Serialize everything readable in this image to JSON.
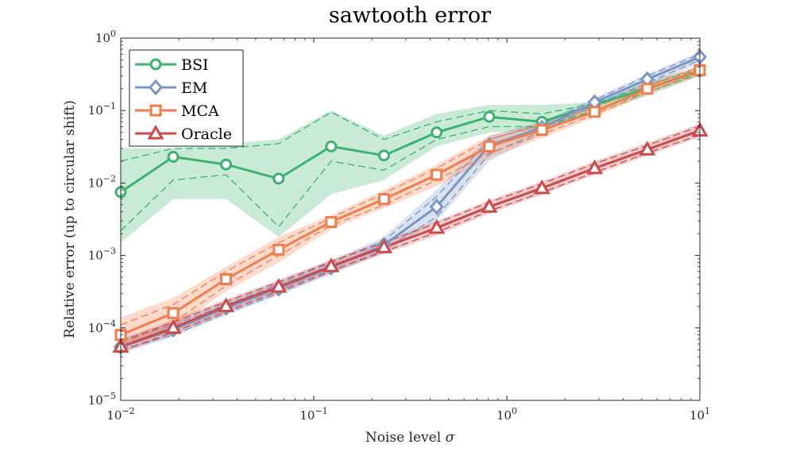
{
  "chart_data": {
    "type": "line",
    "title": "sawtooth error",
    "xlabel": "Noise level σ",
    "ylabel": "Relative error (up to circular shift)",
    "xscale": "log",
    "yscale": "log",
    "xlim": [
      0.01,
      10
    ],
    "ylim": [
      1e-05,
      1
    ],
    "x_ticks": [
      {
        "value": 0.01,
        "base": "10",
        "exp": "−2"
      },
      {
        "value": 0.1,
        "base": "10",
        "exp": "−1"
      },
      {
        "value": 1,
        "base": "10",
        "exp": "0"
      },
      {
        "value": 10,
        "base": "10",
        "exp": "1"
      }
    ],
    "y_ticks": [
      {
        "value": 1e-05,
        "base": "10",
        "exp": "−5"
      },
      {
        "value": 0.0001,
        "base": "10",
        "exp": "−4"
      },
      {
        "value": 0.001,
        "base": "10",
        "exp": "−3"
      },
      {
        "value": 0.01,
        "base": "10",
        "exp": "−2"
      },
      {
        "value": 0.1,
        "base": "10",
        "exp": "−1"
      },
      {
        "value": 1,
        "base": "10",
        "exp": "0"
      }
    ],
    "grid": false,
    "legend_position": "top-left",
    "x": [
      0.01,
      0.0187,
      0.0351,
      0.0658,
      0.123,
      0.231,
      0.433,
      0.811,
      1.52,
      2.85,
      5.34,
      10
    ],
    "series": [
      {
        "name": "BSI",
        "color": "#3cb371",
        "marker": "circle",
        "values": [
          0.0075,
          0.023,
          0.018,
          0.0115,
          0.032,
          0.024,
          0.05,
          0.082,
          0.07,
          0.12,
          0.2,
          0.35
        ],
        "upper": [
          0.03,
          0.03,
          0.035,
          0.04,
          0.1,
          0.045,
          0.09,
          0.12,
          0.12,
          0.13,
          0.25,
          0.4
        ],
        "lower": [
          0.0015,
          0.006,
          0.006,
          0.0018,
          0.007,
          0.011,
          0.032,
          0.05,
          0.055,
          0.09,
          0.16,
          0.3
        ],
        "dash_upper": [
          0.02,
          0.03,
          0.03,
          0.035,
          0.095,
          0.04,
          0.07,
          0.1,
          0.09,
          0.125,
          0.22,
          0.38
        ],
        "dash_lower": [
          0.0022,
          0.011,
          0.013,
          0.0025,
          0.02,
          0.015,
          0.04,
          0.06,
          0.06,
          0.1,
          0.18,
          0.32
        ]
      },
      {
        "name": "EM",
        "color": "#7b96c4",
        "marker": "diamond",
        "values": [
          5.5e-05,
          9.5e-05,
          0.00019,
          0.00035,
          0.00068,
          0.0014,
          0.0047,
          0.033,
          0.058,
          0.13,
          0.27,
          0.55
        ],
        "upper": [
          7e-05,
          0.00012,
          0.00023,
          0.00043,
          0.00085,
          0.0018,
          0.008,
          0.045,
          0.07,
          0.15,
          0.32,
          0.65
        ],
        "lower": [
          4.5e-05,
          7.5e-05,
          0.00015,
          0.00028,
          0.00055,
          0.0011,
          0.003,
          0.02,
          0.048,
          0.11,
          0.22,
          0.45
        ],
        "dash_upper": [
          6.5e-05,
          0.00011,
          0.00021,
          0.0004,
          0.0008,
          0.0016,
          0.0065,
          0.04,
          0.065,
          0.14,
          0.3,
          0.6
        ],
        "dash_lower": [
          5e-05,
          8e-05,
          0.00016,
          0.0003,
          0.0006,
          0.0012,
          0.0034,
          0.025,
          0.052,
          0.12,
          0.24,
          0.5
        ]
      },
      {
        "name": "MCA",
        "color": "#f47c4a",
        "marker": "square",
        "values": [
          8e-05,
          0.00016,
          0.00047,
          0.0012,
          0.0029,
          0.006,
          0.013,
          0.032,
          0.054,
          0.096,
          0.2,
          0.36
        ],
        "upper": [
          0.00014,
          0.00026,
          0.0007,
          0.0018,
          0.0036,
          0.008,
          0.018,
          0.045,
          0.07,
          0.12,
          0.24,
          0.42
        ],
        "lower": [
          5e-05,
          0.0001,
          0.00032,
          0.0008,
          0.0023,
          0.0045,
          0.009,
          0.022,
          0.042,
          0.08,
          0.17,
          0.3
        ],
        "dash_upper": [
          0.00011,
          0.00021,
          0.0006,
          0.0015,
          0.0033,
          0.0072,
          0.016,
          0.04,
          0.063,
          0.11,
          0.22,
          0.4
        ],
        "dash_lower": [
          6e-05,
          0.00012,
          0.00038,
          0.001,
          0.0026,
          0.005,
          0.011,
          0.026,
          0.047,
          0.088,
          0.18,
          0.33
        ]
      },
      {
        "name": "Oracle",
        "color": "#cc4a4a",
        "marker": "triangle",
        "values": [
          5.5e-05,
          0.0001,
          0.0002,
          0.00037,
          0.00071,
          0.0013,
          0.0024,
          0.0047,
          0.0085,
          0.016,
          0.029,
          0.053
        ],
        "upper": [
          7e-05,
          0.00013,
          0.00025,
          0.00046,
          0.00088,
          0.0016,
          0.003,
          0.0058,
          0.0105,
          0.02,
          0.036,
          0.066
        ],
        "lower": [
          4.5e-05,
          8e-05,
          0.00016,
          0.0003,
          0.00057,
          0.00105,
          0.0019,
          0.0038,
          0.0069,
          0.013,
          0.024,
          0.043
        ],
        "dash_upper": [
          6.5e-05,
          0.00012,
          0.00023,
          0.00043,
          0.00082,
          0.0015,
          0.0028,
          0.0054,
          0.0098,
          0.0185,
          0.033,
          0.061
        ],
        "dash_lower": [
          4.8e-05,
          8.7e-05,
          0.00017,
          0.00032,
          0.00062,
          0.00113,
          0.0021,
          0.0041,
          0.0074,
          0.014,
          0.026,
          0.046
        ]
      }
    ]
  }
}
